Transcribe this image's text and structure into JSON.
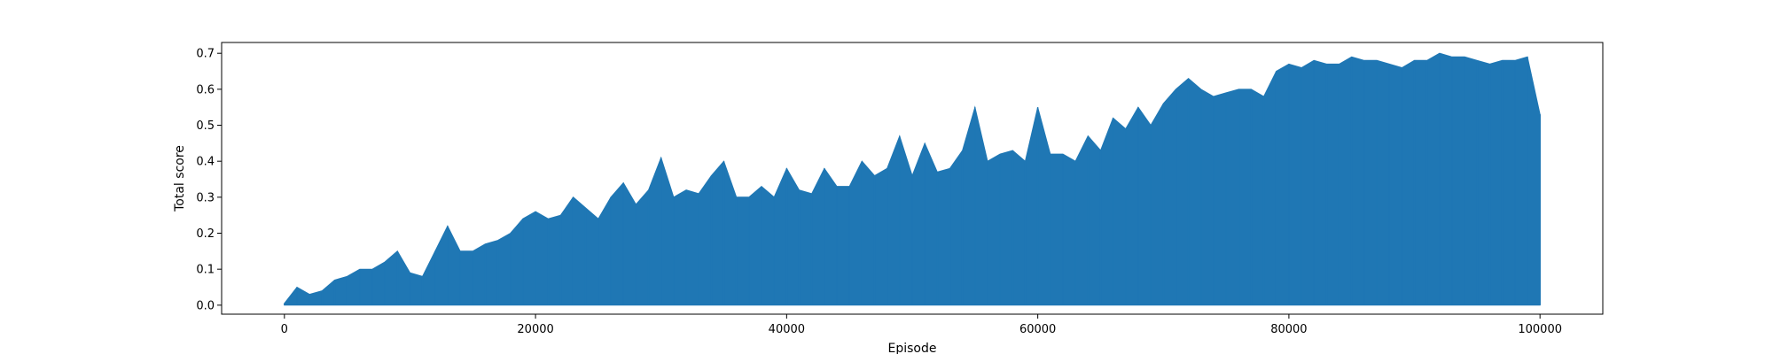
{
  "chart_data": {
    "type": "area",
    "title": "",
    "xlabel": "Episode",
    "ylabel": "Total score",
    "xlim": [
      -5000,
      105000
    ],
    "ylim": [
      -0.025,
      0.73
    ],
    "x_ticks": [
      0,
      20000,
      40000,
      60000,
      80000,
      100000
    ],
    "x_tick_labels": [
      "0",
      "20000",
      "40000",
      "60000",
      "80000",
      "100000"
    ],
    "y_ticks": [
      0.0,
      0.1,
      0.2,
      0.3,
      0.4,
      0.5,
      0.6,
      0.7
    ],
    "y_tick_labels": [
      "0.0",
      "0.1",
      "0.2",
      "0.3",
      "0.4",
      "0.5",
      "0.6",
      "0.7"
    ],
    "grid": false,
    "legend": "none",
    "color": "#1f77b4",
    "series": [
      {
        "x": [
          0,
          1000,
          2000,
          3000,
          4000,
          5000,
          6000,
          7000,
          8000,
          9000,
          10000,
          11000,
          12000,
          13000,
          14000,
          15000,
          16000,
          17000,
          18000,
          19000,
          20000,
          21000,
          22000,
          23000,
          24000,
          25000,
          26000,
          27000,
          28000,
          29000,
          30000,
          31000,
          32000,
          33000,
          34000,
          35000,
          36000,
          37000,
          38000,
          39000,
          40000,
          41000,
          42000,
          43000,
          44000,
          45000,
          46000,
          47000,
          48000,
          49000,
          50000,
          51000,
          52000,
          53000,
          54000,
          55000,
          56000,
          57000,
          58000,
          59000,
          60000,
          61000,
          62000,
          63000,
          64000,
          65000,
          66000,
          67000,
          68000,
          69000,
          70000,
          71000,
          72000,
          73000,
          74000,
          75000,
          76000,
          77000,
          78000,
          79000,
          80000,
          81000,
          82000,
          83000,
          84000,
          85000,
          86000,
          87000,
          88000,
          89000,
          90000,
          91000,
          92000,
          93000,
          94000,
          95000,
          96000,
          97000,
          98000,
          99000,
          100000
        ],
        "y": [
          0.005,
          0.05,
          0.03,
          0.04,
          0.07,
          0.08,
          0.1,
          0.1,
          0.12,
          0.15,
          0.09,
          0.08,
          0.15,
          0.22,
          0.15,
          0.15,
          0.17,
          0.18,
          0.2,
          0.24,
          0.26,
          0.24,
          0.25,
          0.3,
          0.27,
          0.24,
          0.3,
          0.34,
          0.28,
          0.32,
          0.41,
          0.3,
          0.32,
          0.31,
          0.36,
          0.4,
          0.3,
          0.3,
          0.33,
          0.3,
          0.38,
          0.32,
          0.31,
          0.38,
          0.33,
          0.33,
          0.4,
          0.36,
          0.38,
          0.47,
          0.36,
          0.45,
          0.37,
          0.38,
          0.43,
          0.55,
          0.4,
          0.42,
          0.43,
          0.4,
          0.55,
          0.42,
          0.42,
          0.4,
          0.47,
          0.43,
          0.52,
          0.49,
          0.55,
          0.5,
          0.56,
          0.6,
          0.63,
          0.6,
          0.58,
          0.59,
          0.6,
          0.6,
          0.58,
          0.65,
          0.67,
          0.66,
          0.68,
          0.67,
          0.67,
          0.69,
          0.68,
          0.68,
          0.67,
          0.66,
          0.68,
          0.68,
          0.7,
          0.69,
          0.69,
          0.68,
          0.67,
          0.68,
          0.68,
          0.69,
          0.53
        ]
      }
    ]
  }
}
